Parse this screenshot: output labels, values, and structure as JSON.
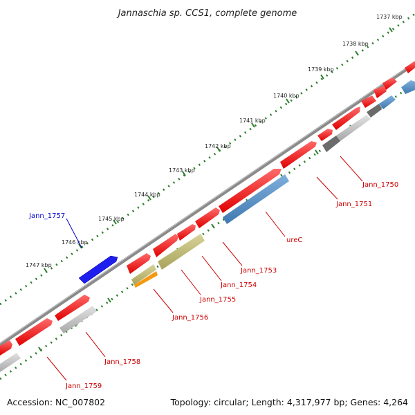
{
  "title": "Jannaschia sp. CCS1, complete genome",
  "footer": {
    "accession": "Accession: NC_007802",
    "summary": "Topology: circular; Length: 4,317,977 bp; Genes: 4,264"
  },
  "colors": {
    "backbone": "#7b7b7b",
    "tick_ring": "#2a7d2a",
    "label_red": "#cc0000",
    "label_blue": "#0000cc"
  },
  "scale": {
    "ticks": [
      "1737 kbp",
      "1738 kbp",
      "1739 kbp",
      "1740 kbp",
      "1741 kbp",
      "1742 kbp",
      "1743 kbp",
      "1744 kbp",
      "1745 kbp",
      "1746 kbp",
      "1747 kbp"
    ]
  },
  "features": [
    {
      "name": "Jann_1757",
      "color": "blue"
    },
    {
      "name": "Jann_1750",
      "color": "red"
    },
    {
      "name": "Jann_1751",
      "color": "red"
    },
    {
      "name": "ureC",
      "color": "red"
    },
    {
      "name": "Jann_1753",
      "color": "red"
    },
    {
      "name": "Jann_1754",
      "color": "red"
    },
    {
      "name": "Jann_1755",
      "color": "red"
    },
    {
      "name": "Jann_1756",
      "color": "red"
    },
    {
      "name": "Jann_1758",
      "color": "red"
    },
    {
      "name": "Jann_1759",
      "color": "red"
    }
  ]
}
